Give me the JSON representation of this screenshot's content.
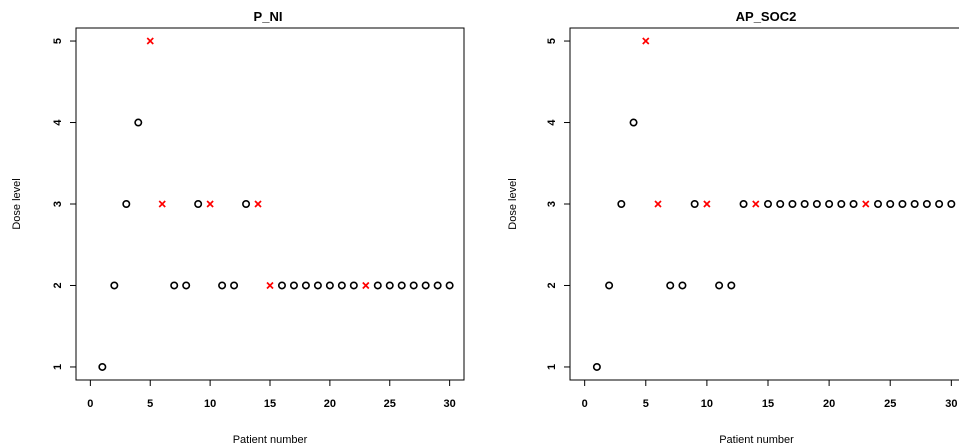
{
  "chart_data": [
    {
      "type": "scatter",
      "title": "P_NI",
      "xlabel": "Patient number",
      "ylabel": "Dose level",
      "xlim": [
        0,
        30
      ],
      "ylim": [
        1,
        5
      ],
      "xticks": [
        0,
        5,
        10,
        15,
        20,
        25,
        30
      ],
      "yticks": [
        1,
        2,
        3,
        4,
        5
      ],
      "grid": false,
      "marker_colors": {
        "o": "#000000",
        "x": "#ff0000"
      },
      "series": [
        {
          "name": "",
          "marker": "o",
          "x": [
            1,
            2,
            3,
            4,
            7,
            8,
            9,
            11,
            12,
            13,
            16,
            17,
            18,
            19,
            20,
            21,
            22,
            24,
            25,
            26,
            27,
            28,
            29,
            30
          ],
          "y": [
            1,
            2,
            3,
            4,
            2,
            2,
            3,
            2,
            2,
            3,
            2,
            2,
            2,
            2,
            2,
            2,
            2,
            2,
            2,
            2,
            2,
            2,
            2,
            2
          ]
        },
        {
          "name": "",
          "marker": "x",
          "x": [
            5,
            6,
            10,
            14,
            15,
            23
          ],
          "y": [
            5,
            3,
            3,
            3,
            2,
            2
          ]
        }
      ]
    },
    {
      "type": "scatter",
      "title": "AP_SOC2",
      "xlabel": "Patient number",
      "ylabel": "Dose level",
      "xlim": [
        0,
        30
      ],
      "ylim": [
        1,
        5
      ],
      "xticks": [
        0,
        5,
        10,
        15,
        20,
        25,
        30
      ],
      "yticks": [
        1,
        2,
        3,
        4,
        5
      ],
      "grid": false,
      "marker_colors": {
        "o": "#000000",
        "x": "#ff0000"
      },
      "series": [
        {
          "name": "",
          "marker": "o",
          "x": [
            1,
            2,
            3,
            4,
            7,
            8,
            9,
            11,
            12,
            13,
            15,
            16,
            17,
            18,
            19,
            20,
            21,
            22,
            24,
            25,
            26,
            27,
            28,
            29,
            30
          ],
          "y": [
            1,
            2,
            3,
            4,
            2,
            2,
            3,
            2,
            2,
            3,
            3,
            3,
            3,
            3,
            3,
            3,
            3,
            3,
            3,
            3,
            3,
            3,
            3,
            3,
            3
          ]
        },
        {
          "name": "",
          "marker": "x",
          "x": [
            5,
            6,
            10,
            14,
            23
          ],
          "y": [
            5,
            3,
            3,
            3,
            3
          ]
        }
      ]
    }
  ]
}
